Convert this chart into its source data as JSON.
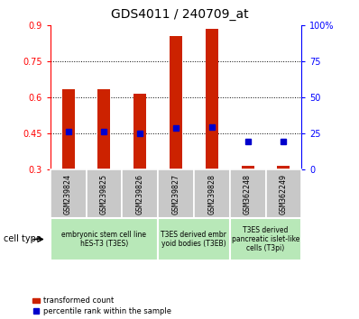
{
  "title": "GDS4011 / 240709_at",
  "categories": [
    "GSM239824",
    "GSM239825",
    "GSM239826",
    "GSM239827",
    "GSM239828",
    "GSM362248",
    "GSM362249"
  ],
  "red_values": [
    0.635,
    0.635,
    0.615,
    0.855,
    0.885,
    0.315,
    0.315
  ],
  "blue_values": [
    0.455,
    0.455,
    0.45,
    0.47,
    0.475,
    0.415,
    0.415
  ],
  "ylim": [
    0.3,
    0.9
  ],
  "yticks_left": [
    0.3,
    0.45,
    0.6,
    0.75,
    0.9
  ],
  "ytick_labels_left": [
    "0.3",
    "0.45",
    "0.6",
    "0.75",
    "0.9"
  ],
  "ytick_labels_right": [
    "0",
    "25",
    "50",
    "75",
    "100%"
  ],
  "ytick_labels_right_left": [
    "0%",
    "25",
    "50",
    "75",
    "100%"
  ],
  "grid_values": [
    0.45,
    0.6,
    0.75
  ],
  "group_info": [
    [
      0,
      2,
      "embryonic stem cell line\nhES-T3 (T3ES)"
    ],
    [
      3,
      4,
      "T3ES derived embr\nyoid bodies (T3EB)"
    ],
    [
      5,
      6,
      "T3ES derived\npancreatic islet-like\ncells (T3pi)"
    ]
  ],
  "cell_type_label": "cell type",
  "legend_red": "transformed count",
  "legend_blue": "percentile rank within the sample",
  "bar_color": "#cc2200",
  "dot_color": "#0000cc",
  "bar_width": 0.35,
  "red_base": 0.3,
  "green_color": "#b8e8b8",
  "gray_color": "#c8c8c8"
}
